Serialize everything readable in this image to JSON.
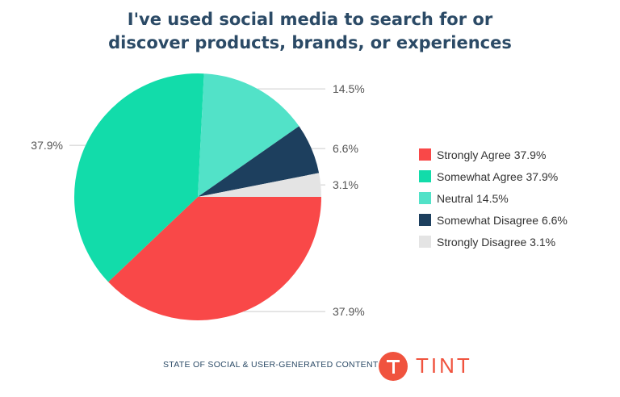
{
  "title_lines": [
    "I've used social media to search for or",
    "discover products, brands, or experiences"
  ],
  "chart_data": {
    "type": "pie",
    "title": "I've used social media to search for or discover products, brands, or experiences",
    "categories": [
      "Strongly Agree",
      "Somewhat Agree",
      "Neutral",
      "Somewhat Disagree",
      "Strongly Disagree"
    ],
    "values": [
      37.9,
      37.9,
      14.5,
      6.6,
      3.1
    ],
    "colors": [
      "#f94848",
      "#12dcaa",
      "#52e2c8",
      "#1d3f5e",
      "#e4e4e4"
    ],
    "data_labels": [
      "37.9%",
      "37.9%",
      "14.5%",
      "6.6%",
      "3.1%"
    ],
    "legend": [
      "Strongly Agree 37.9%",
      "Somewhat Agree 37.9%",
      "Neutral 14.5%",
      "Somewhat Disagree 6.6%",
      "Strongly Disagree 3.1%"
    ],
    "legend_position": "right"
  },
  "footer": {
    "text": "STATE OF SOCIAL & USER-GENERATED CONTENT",
    "logo_text": "TINT",
    "logo_icon": "tint-t-logo-icon",
    "brand_color": "#f0533e"
  }
}
